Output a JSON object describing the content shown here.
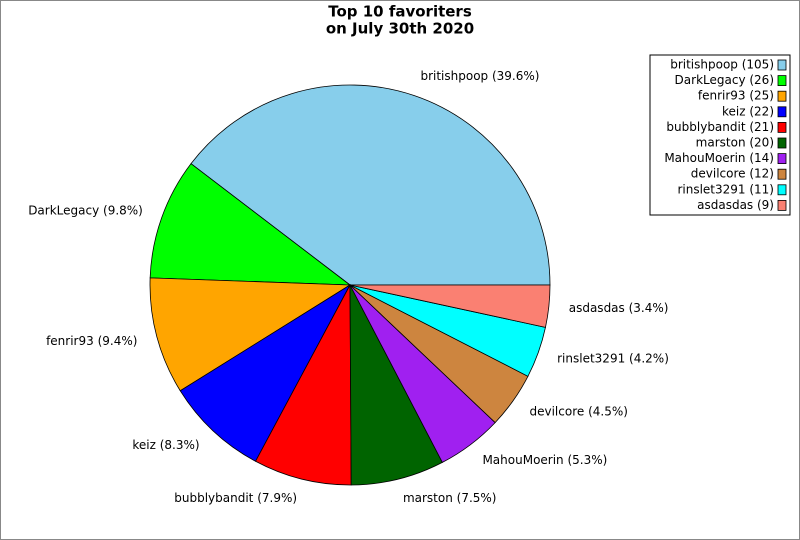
{
  "chart_data": {
    "type": "pie",
    "title": [
      "Top 10 favoriters",
      "on July 30th 2020"
    ],
    "values": [
      105,
      26,
      25,
      22,
      21,
      20,
      14,
      12,
      11,
      9
    ],
    "labels": [
      "britishpoop (39.6%)",
      "DarkLegacy (9.8%)",
      "fenrir93 (9.4%)",
      "keiz (8.3%)",
      "bubblybandit (7.9%)",
      "marston (7.5%)",
      "MahouMoerin (5.3%)",
      "devilcore (4.5%)",
      "rinslet3291 (4.2%)",
      "asdasdas (3.4%)"
    ],
    "legend_labels": [
      "britishpoop (105)",
      "DarkLegacy (26)",
      "fenrir93 (25)",
      "keiz (22)",
      "bubblybandit (21)",
      "marston (20)",
      "MahouMoerin (14)",
      "devilcore (12)",
      "rinslet3291 (11)",
      "asdasdas (9)"
    ],
    "colors": [
      "#87ceeb",
      "#00ff00",
      "#ffa500",
      "#0000ff",
      "#ff0000",
      "#006400",
      "#a020f0",
      "#cd853f",
      "#00ffff",
      "#fa8072"
    ],
    "legend": "upper right"
  }
}
